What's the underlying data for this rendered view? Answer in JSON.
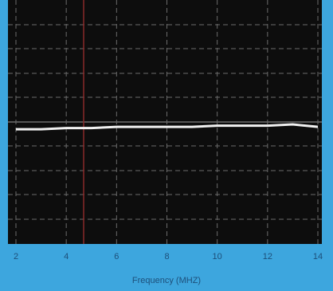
{
  "chart_data": {
    "type": "line",
    "xlabel": "Frequency (MHZ)",
    "x": [
      2,
      3,
      4,
      5,
      6,
      7,
      8,
      9,
      10,
      11,
      12,
      13,
      14
    ],
    "series": [
      {
        "color": "#f2f2f2",
        "values": [
          4.7,
          4.7,
          4.75,
          4.75,
          4.8,
          4.8,
          4.8,
          4.8,
          4.85,
          4.85,
          4.85,
          4.9,
          4.8
        ]
      }
    ],
    "xlim": [
      2,
      14
    ],
    "xticks": [
      2,
      4,
      6,
      8,
      10,
      12,
      14
    ],
    "ylim": [
      0,
      10
    ],
    "grid": true
  }
}
